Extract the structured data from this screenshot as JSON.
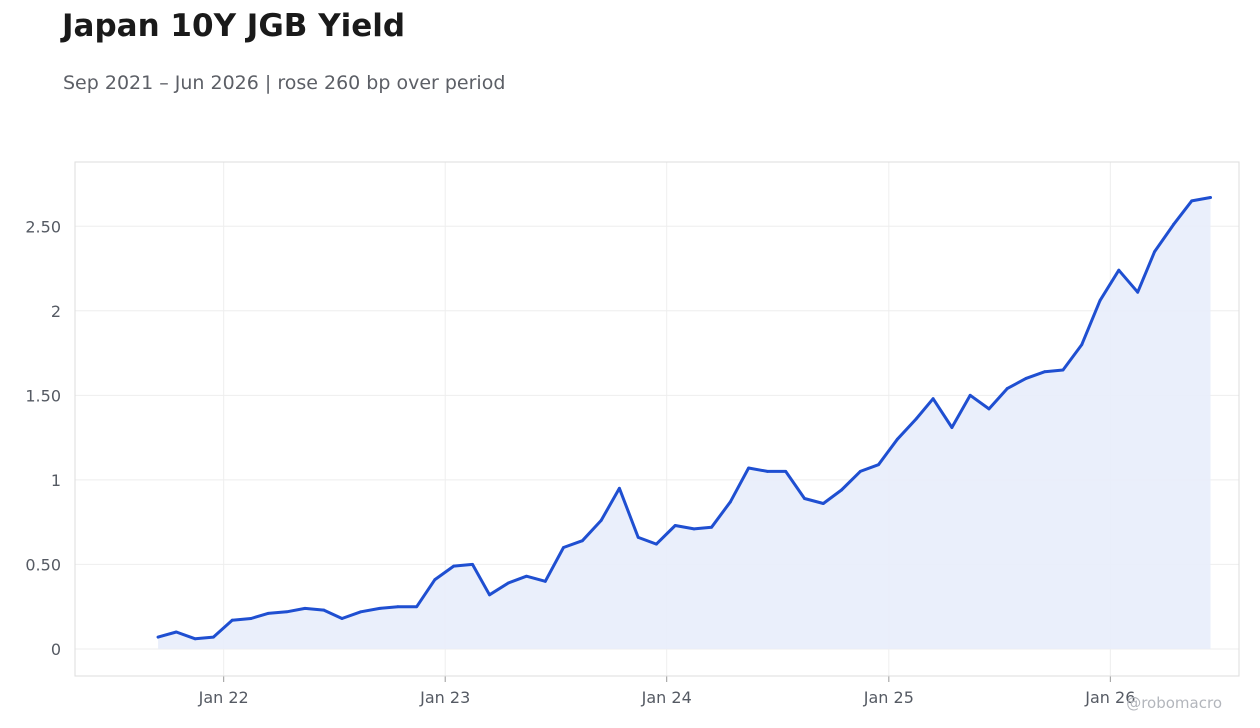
{
  "chart_data": {
    "type": "area",
    "title": "Japan 10Y JGB Yield",
    "subtitle": "Sep 2021 – Jun 2026 | rose 260 bp over period",
    "credit": "@robomacro",
    "xlabel": "",
    "ylabel": "",
    "ylim": [
      -0.16,
      2.88
    ],
    "xlim": [
      "2021-05-01",
      "2026-08-01"
    ],
    "grid": true,
    "legend": "none",
    "colors": {
      "line": "#1f4fd1",
      "fill": "#e8edfb",
      "grid": "#eeeeee",
      "frame": "#dddddd"
    },
    "y_ticks": [
      {
        "value": 0,
        "label": "0"
      },
      {
        "value": 0.5,
        "label": "0.50"
      },
      {
        "value": 1,
        "label": "1"
      },
      {
        "value": 1.5,
        "label": "1.50"
      },
      {
        "value": 2,
        "label": "2"
      },
      {
        "value": 2.5,
        "label": "2.50"
      }
    ],
    "x_ticks": [
      {
        "value": "2022-01-01",
        "label": "Jan 22"
      },
      {
        "value": "2023-01-01",
        "label": "Jan 23"
      },
      {
        "value": "2024-01-01",
        "label": "Jan 24"
      },
      {
        "value": "2025-01-01",
        "label": "Jan 25"
      },
      {
        "value": "2026-01-01",
        "label": "Jan 26"
      }
    ],
    "series": [
      {
        "x": [
          "2021-09",
          "2021-10",
          "2021-11",
          "2021-12",
          "2022-01",
          "2022-02",
          "2022-03",
          "2022-04",
          "2022-05",
          "2022-06",
          "2022-07",
          "2022-08",
          "2022-09",
          "2022-10",
          "2022-11",
          "2022-12",
          "2023-01",
          "2023-02",
          "2023-03",
          "2023-04",
          "2023-05",
          "2023-06",
          "2023-07",
          "2023-08",
          "2023-09",
          "2023-10",
          "2023-11",
          "2023-12",
          "2024-01",
          "2024-02",
          "2024-03",
          "2024-04",
          "2024-05",
          "2024-06",
          "2024-07",
          "2024-08",
          "2024-09",
          "2024-10",
          "2024-11",
          "2024-12",
          "2025-01",
          "2025-02",
          "2025-03",
          "2025-04",
          "2025-05",
          "2025-06",
          "2025-07",
          "2025-08",
          "2025-09",
          "2025-10",
          "2025-11",
          "2025-12",
          "2026-01",
          "2026-02",
          "2026-03",
          "2026-04",
          "2026-05",
          "2026-06"
        ],
        "values": [
          0.07,
          0.1,
          0.06,
          0.07,
          0.17,
          0.18,
          0.21,
          0.22,
          0.24,
          0.23,
          0.18,
          0.22,
          0.24,
          0.25,
          0.25,
          0.41,
          0.49,
          0.5,
          0.32,
          0.39,
          0.43,
          0.4,
          0.6,
          0.64,
          0.76,
          0.95,
          0.66,
          0.62,
          0.73,
          0.71,
          0.72,
          0.87,
          1.07,
          1.05,
          1.05,
          0.89,
          0.86,
          0.94,
          1.05,
          1.09,
          1.24,
          1.36,
          1.48,
          1.31,
          1.5,
          1.42,
          1.54,
          1.6,
          1.64,
          1.65,
          1.8,
          2.06,
          2.24,
          2.11,
          2.35,
          2.51,
          2.65,
          2.67
        ]
      }
    ]
  }
}
